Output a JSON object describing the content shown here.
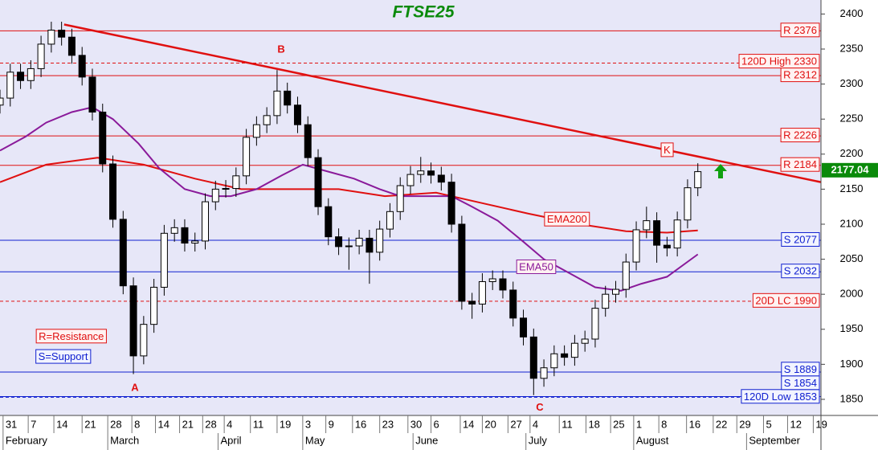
{
  "chart_data": {
    "type": "candlestick",
    "title": "FTSE25",
    "xlim": [
      0,
      160
    ],
    "ylim": [
      1827,
      2420
    ],
    "yticks": [
      1850,
      1900,
      1950,
      2000,
      2050,
      2100,
      2150,
      2200,
      2250,
      2300,
      2350,
      2400
    ],
    "xticks": [
      {
        "value": 0.6,
        "label": "31"
      },
      {
        "value": 5.5,
        "label": "7"
      },
      {
        "value": 10.5,
        "label": "14"
      },
      {
        "value": 16,
        "label": "21"
      },
      {
        "value": 21,
        "label": "28"
      },
      {
        "value": 25.7,
        "label": "8"
      },
      {
        "value": 30.3,
        "label": "14"
      },
      {
        "value": 35,
        "label": "21"
      },
      {
        "value": 39.5,
        "label": "28"
      },
      {
        "value": 43.7,
        "label": "4"
      },
      {
        "value": 48.8,
        "label": "11"
      },
      {
        "value": 54,
        "label": "19"
      },
      {
        "value": 59,
        "label": "3"
      },
      {
        "value": 63.5,
        "label": "9"
      },
      {
        "value": 68.7,
        "label": "16"
      },
      {
        "value": 74,
        "label": "23"
      },
      {
        "value": 79.5,
        "label": "30"
      },
      {
        "value": 84,
        "label": "6"
      },
      {
        "value": 89.7,
        "label": "14"
      },
      {
        "value": 94,
        "label": "20"
      },
      {
        "value": 99,
        "label": "27"
      },
      {
        "value": 103.3,
        "label": "4"
      },
      {
        "value": 109,
        "label": "11"
      },
      {
        "value": 114.2,
        "label": "18"
      },
      {
        "value": 119,
        "label": "25"
      },
      {
        "value": 123.5,
        "label": "1"
      },
      {
        "value": 128.4,
        "label": "8"
      },
      {
        "value": 133.8,
        "label": "16"
      },
      {
        "value": 139,
        "label": "22"
      },
      {
        "value": 143.6,
        "label": "29"
      },
      {
        "value": 148.8,
        "label": "5"
      },
      {
        "value": 153.5,
        "label": "12"
      },
      {
        "value": 158.5,
        "label": "19"
      }
    ],
    "months": {
      "labels": [
        "February",
        "March",
        "April",
        "May",
        "June",
        "July",
        "August",
        "September"
      ],
      "x": [
        0.6,
        21,
        42.5,
        59,
        80.5,
        102.5,
        123.5,
        145.5
      ]
    },
    "x": [
      0,
      2,
      4,
      6,
      8,
      10,
      12,
      14,
      16,
      18,
      20,
      22,
      24,
      26,
      28,
      30,
      32,
      34,
      36,
      38,
      40,
      42,
      44,
      46,
      48,
      50,
      52,
      54,
      56,
      58,
      60,
      62,
      64,
      66,
      68,
      70,
      72,
      74,
      76,
      78,
      80,
      82,
      84,
      86,
      88,
      90,
      92,
      94,
      96,
      98,
      100,
      102,
      104,
      106,
      108,
      110,
      112,
      114,
      116,
      118,
      120,
      122,
      124,
      126,
      128,
      130,
      132,
      134,
      136
    ],
    "open": [
      2270,
      2280,
      2317,
      2305,
      2322,
      2357,
      2377,
      2367,
      2341,
      2310,
      2260,
      2186,
      2107,
      2012,
      1912,
      1957,
      2010,
      2087,
      2095,
      2073,
      2076,
      2132,
      2150,
      2151,
      2169,
      2224,
      2242,
      2255,
      2290,
      2270,
      2242,
      2195,
      2125,
      2082,
      2068,
      2069,
      2080,
      2060,
      2093,
      2118,
      2155,
      2171,
      2176,
      2170,
      2160,
      2100,
      1990,
      1986,
      2018,
      2022,
      2006,
      1966,
      1939,
      1880,
      1895,
      1915,
      1910,
      1930,
      1936,
      1980,
      2000,
      2007,
      2046,
      2092,
      2105,
      2070,
      2066,
      2106,
      2152
    ],
    "high": [
      2292,
      2329,
      2329,
      2334,
      2369,
      2389,
      2389,
      2379,
      2353,
      2322,
      2272,
      2198,
      2119,
      2024,
      1969,
      2022,
      2099,
      2107,
      2107,
      2088,
      2144,
      2162,
      2163,
      2181,
      2236,
      2254,
      2267,
      2320,
      2302,
      2282,
      2254,
      2207,
      2137,
      2094,
      2081,
      2092,
      2092,
      2105,
      2130,
      2167,
      2183,
      2196,
      2188,
      2182,
      2172,
      2112,
      2002,
      2030,
      2034,
      2034,
      2018,
      1978,
      1951,
      1907,
      1927,
      1927,
      1942,
      1948,
      1992,
      2012,
      2019,
      2058,
      2104,
      2125,
      2117,
      2082,
      2118,
      2164,
      2187
    ],
    "low": [
      2258,
      2268,
      2293,
      2293,
      2310,
      2345,
      2355,
      2329,
      2298,
      2248,
      2174,
      2095,
      2000,
      1886,
      1900,
      1945,
      1998,
      2075,
      2061,
      2061,
      2064,
      2120,
      2138,
      2139,
      2157,
      2212,
      2230,
      2243,
      2258,
      2230,
      2183,
      2113,
      2070,
      2056,
      2035,
      2057,
      2015,
      2048,
      2081,
      2106,
      2143,
      2159,
      2158,
      2148,
      2088,
      1978,
      1965,
      1974,
      2006,
      1994,
      1954,
      1927,
      1856,
      1868,
      1883,
      1898,
      1898,
      1918,
      1924,
      1968,
      1988,
      1995,
      2034,
      2080,
      2045,
      2054,
      2054,
      2094,
      2140
    ],
    "close": [
      2280,
      2317,
      2305,
      2322,
      2357,
      2377,
      2367,
      2341,
      2310,
      2260,
      2186,
      2107,
      2012,
      1912,
      1957,
      2010,
      2087,
      2095,
      2073,
      2076,
      2132,
      2150,
      2151,
      2169,
      2224,
      2242,
      2255,
      2290,
      2270,
      2242,
      2195,
      2125,
      2082,
      2068,
      2069,
      2080,
      2060,
      2093,
      2118,
      2155,
      2171,
      2176,
      2170,
      2160,
      2100,
      1990,
      1986,
      2018,
      2022,
      2006,
      1966,
      1939,
      1880,
      1895,
      1915,
      1910,
      1930,
      1936,
      1980,
      2000,
      2007,
      2046,
      2092,
      2105,
      2070,
      2066,
      2106,
      2152,
      2175
    ],
    "series": [
      {
        "name": "EMA200",
        "color": "#e01010",
        "x": [
          0,
          9,
          19,
          28,
          38,
          47,
          56,
          66,
          75,
          85,
          94,
          103,
          113,
          122,
          130,
          136
        ],
        "values": [
          2160,
          2185,
          2195,
          2185,
          2165,
          2150,
          2150,
          2150,
          2140,
          2145,
          2130,
          2115,
          2100,
          2090,
          2088,
          2091
        ]
      },
      {
        "name": "EMA50",
        "color": "#8a1a9a",
        "x": [
          0,
          5,
          9,
          14,
          18,
          22,
          27,
          31,
          36,
          41,
          45,
          50,
          55,
          59,
          64,
          69,
          74,
          78,
          83,
          88,
          92,
          97,
          102,
          106,
          111,
          116,
          121,
          125,
          130,
          136
        ],
        "values": [
          2205,
          2225,
          2245,
          2260,
          2267,
          2250,
          2215,
          2180,
          2150,
          2140,
          2140,
          2150,
          2170,
          2185,
          2175,
          2165,
          2150,
          2140,
          2140,
          2140,
          2125,
          2105,
          2075,
          2050,
          2030,
          2010,
          2005,
          2015,
          2025,
          2057
        ]
      }
    ],
    "trendline": {
      "x": [
        12.5,
        160
      ],
      "values": [
        2385,
        2160
      ],
      "color": "#e01010"
    },
    "levels": [
      {
        "label": "R 2376",
        "value": 2376,
        "color": "#e01010",
        "style": "solid"
      },
      {
        "label": "120D High 2330",
        "value": 2330,
        "color": "#e01010",
        "style": "dashed"
      },
      {
        "label": "R 2312",
        "value": 2312,
        "color": "#e01010",
        "style": "solid"
      },
      {
        "label": "R 2226",
        "value": 2226,
        "color": "#e01010",
        "style": "solid"
      },
      {
        "label": "R 2184",
        "value": 2184,
        "color": "#e01010",
        "style": "solid"
      },
      {
        "label": "S 2077",
        "value": 2077,
        "color": "#1020d0",
        "style": "solid"
      },
      {
        "label": "S 2032",
        "value": 2032,
        "color": "#1020d0",
        "style": "solid"
      },
      {
        "label": "20D LC 1990",
        "value": 1990,
        "color": "#e01010",
        "style": "dashed"
      },
      {
        "label": "S 1889",
        "value": 1889,
        "color": "#1020d0",
        "style": "solid"
      },
      {
        "label": "S 1854",
        "value": 1854,
        "color": "#1020d0",
        "style": "solid"
      },
      {
        "label": "120D Low 1853",
        "value": 1853,
        "color": "#1020d0",
        "style": "dashed"
      }
    ],
    "annotations": [
      {
        "text": "A",
        "x": 26.3,
        "y": 1866,
        "color": "#e01010"
      },
      {
        "text": "B",
        "x": 54.8,
        "y": 2349,
        "color": "#e01010"
      },
      {
        "text": "C",
        "x": 105.2,
        "y": 1838,
        "color": "#e01010"
      },
      {
        "text": "K",
        "x": 130,
        "y": 2205,
        "color": "#e01010",
        "box": true
      },
      {
        "text": "EMA200",
        "x": 110.5,
        "y": 2106,
        "color": "#e01010",
        "box": true
      },
      {
        "text": "EMA50",
        "x": 104.5,
        "y": 2038,
        "color": "#8a1a9a",
        "box": true
      },
      {
        "text": "R=Resistance",
        "x": 13.9,
        "y": 1939,
        "color": "#e01010",
        "box": true
      },
      {
        "text": "S=Support",
        "x": 12.3,
        "y": 1910,
        "color": "#1020d0",
        "box": true
      }
    ],
    "last_price": {
      "value": 2177.04,
      "color": "#0a8a0a"
    }
  }
}
